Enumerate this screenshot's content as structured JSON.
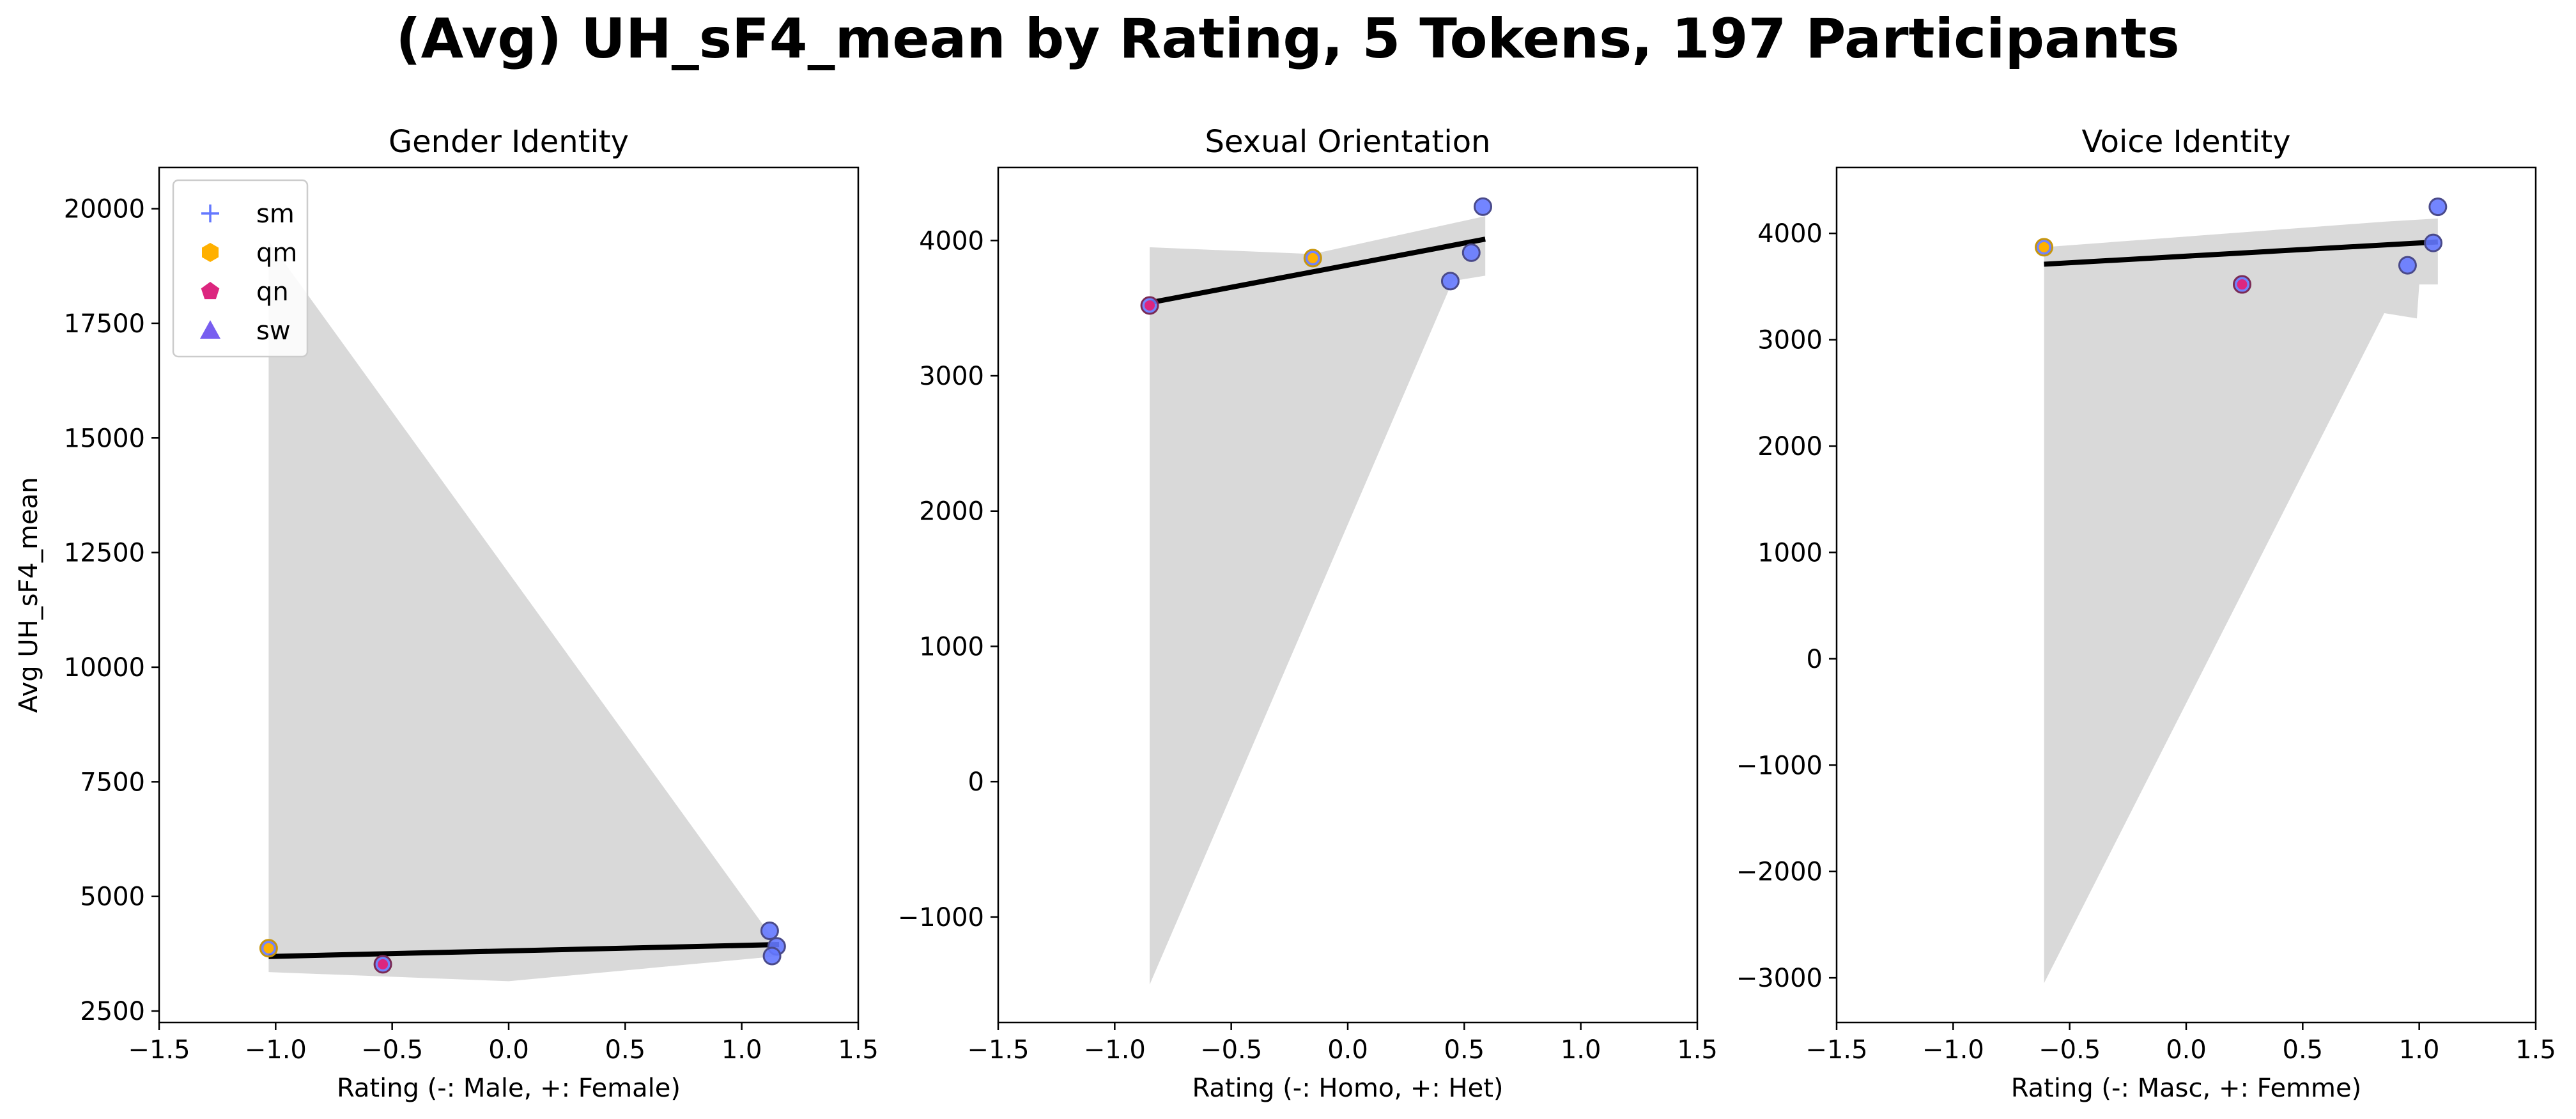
{
  "figure_title": "(Avg) UH_sF4_mean by Rating, 5 Tokens, 197 Participants",
  "legend": [
    {
      "label": "sm",
      "marker": "plus",
      "color": "#6478ff"
    },
    {
      "label": "qm",
      "marker": "hexagon",
      "color": "#ffb000"
    },
    {
      "label": "qn",
      "marker": "pentagon",
      "color": "#dc267f"
    },
    {
      "label": "sw",
      "marker": "triangle",
      "color": "#785ef0"
    }
  ],
  "colors": {
    "band": "#d9d9d9",
    "fit_line": "#000000",
    "point_fill": "#6478ff",
    "point_edge": "#4a4a8a"
  },
  "chart_data": [
    {
      "type": "scatter",
      "title": "Gender Identity",
      "xlabel": "Rating (-: Male, +: Female)",
      "ylabel": "Avg UH_sF4_mean",
      "xlim": [
        -1.5,
        1.5
      ],
      "ylim": [
        2250,
        20900
      ],
      "xticks": [
        -1.5,
        -1.0,
        -0.5,
        0.0,
        0.5,
        1.0,
        1.5
      ],
      "xtick_labels": [
        "−1.5",
        "−1.0",
        "−0.5",
        "0.0",
        "0.5",
        "1.0",
        "1.5"
      ],
      "yticks": [
        2500,
        5000,
        7500,
        10000,
        12500,
        15000,
        17500,
        20000
      ],
      "ytick_labels": [
        "2500",
        "5000",
        "7500",
        "10000",
        "12500",
        "15000",
        "17500",
        "20000"
      ],
      "legend_location": "upper left",
      "points": [
        {
          "x": -1.03,
          "y": 3870,
          "group": "qm"
        },
        {
          "x": -0.54,
          "y": 3520,
          "group": "qn"
        },
        {
          "x": 1.12,
          "y": 4250,
          "group": "sm"
        },
        {
          "x": 1.15,
          "y": 3910,
          "group": "sw"
        },
        {
          "x": 1.13,
          "y": 3700,
          "group": "sw"
        }
      ],
      "fit_line": [
        {
          "x": -1.03,
          "y": 3690
        },
        {
          "x": 1.16,
          "y": 3950
        }
      ],
      "ci_band": [
        {
          "x": -1.03,
          "y": 19300
        },
        {
          "x": 1.16,
          "y": 3900
        },
        {
          "x": 1.16,
          "y": 3700
        },
        {
          "x": 0.0,
          "y": 3150
        },
        {
          "x": -1.03,
          "y": 3350
        }
      ]
    },
    {
      "type": "scatter",
      "title": "Sexual Orientation",
      "xlabel": "Rating (-: Homo, +: Het)",
      "ylabel": "",
      "xlim": [
        -1.5,
        1.5
      ],
      "ylim": [
        -1780,
        4540
      ],
      "xticks": [
        -1.5,
        -1.0,
        -0.5,
        0.0,
        0.5,
        1.0,
        1.5
      ],
      "xtick_labels": [
        "−1.5",
        "−1.0",
        "−0.5",
        "0.0",
        "0.5",
        "1.0",
        "1.5"
      ],
      "yticks": [
        -1000,
        0,
        1000,
        2000,
        3000,
        4000
      ],
      "ytick_labels": [
        "−1000",
        "0",
        "1000",
        "2000",
        "3000",
        "4000"
      ],
      "points": [
        {
          "x": -0.85,
          "y": 3520,
          "group": "qn"
        },
        {
          "x": -0.15,
          "y": 3870,
          "group": "qm"
        },
        {
          "x": 0.44,
          "y": 3700,
          "group": "sw"
        },
        {
          "x": 0.53,
          "y": 3910,
          "group": "sw"
        },
        {
          "x": 0.58,
          "y": 4250,
          "group": "sm"
        }
      ],
      "fit_line": [
        {
          "x": -0.85,
          "y": 3540
        },
        {
          "x": 0.59,
          "y": 4010
        }
      ],
      "ci_band": [
        {
          "x": -0.85,
          "y": 3950
        },
        {
          "x": -0.15,
          "y": 3900
        },
        {
          "x": 0.59,
          "y": 4180
        },
        {
          "x": 0.59,
          "y": 3740
        },
        {
          "x": 0.45,
          "y": 3700
        },
        {
          "x": -0.85,
          "y": -1500
        }
      ]
    },
    {
      "type": "scatter",
      "title": "Voice Identity",
      "xlabel": "Rating (-: Masc, +: Femme)",
      "ylabel": "",
      "xlim": [
        -1.5,
        1.5
      ],
      "ylim": [
        -3420,
        4620
      ],
      "xticks": [
        -1.5,
        -1.0,
        -0.5,
        0.0,
        0.5,
        1.0,
        1.5
      ],
      "xtick_labels": [
        "−1.5",
        "−1.0",
        "−0.5",
        "0.0",
        "0.5",
        "1.0",
        "1.5"
      ],
      "yticks": [
        -3000,
        -2000,
        -1000,
        0,
        1000,
        2000,
        3000,
        4000
      ],
      "ytick_labels": [
        "−3000",
        "−2000",
        "−1000",
        "0",
        "1000",
        "2000",
        "3000",
        "4000"
      ],
      "points": [
        {
          "x": -0.61,
          "y": 3870,
          "group": "qm"
        },
        {
          "x": 0.24,
          "y": 3520,
          "group": "qn"
        },
        {
          "x": 0.95,
          "y": 3700,
          "group": "sw"
        },
        {
          "x": 1.06,
          "y": 3910,
          "group": "sw"
        },
        {
          "x": 1.08,
          "y": 4250,
          "group": "sm"
        }
      ],
      "fit_line": [
        {
          "x": -0.61,
          "y": 3710
        },
        {
          "x": 1.08,
          "y": 3920
        }
      ],
      "ci_band": [
        {
          "x": -0.61,
          "y": 3870
        },
        {
          "x": 0.85,
          "y": 4110
        },
        {
          "x": 1.08,
          "y": 4140
        },
        {
          "x": 1.08,
          "y": 3520
        },
        {
          "x": 1.0,
          "y": 3520
        },
        {
          "x": 0.99,
          "y": 3200
        },
        {
          "x": 0.85,
          "y": 3250
        },
        {
          "x": -0.61,
          "y": -3050
        }
      ]
    }
  ]
}
